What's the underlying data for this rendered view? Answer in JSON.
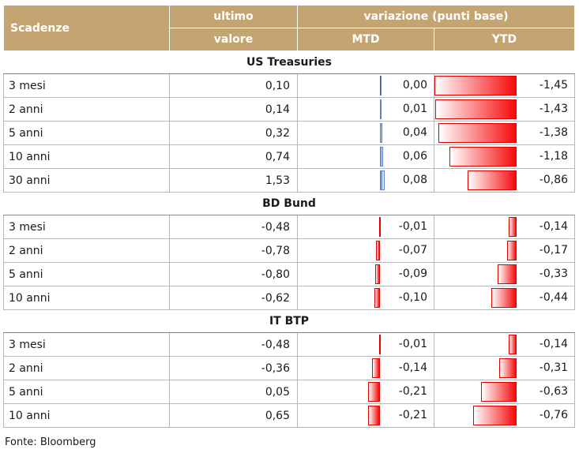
{
  "header": {
    "col_maturity": "Scadenze",
    "col_last_line1": "ultimo",
    "col_last_line2": "valore",
    "col_change": "variazione (punti base)",
    "col_mtd": "MTD",
    "col_ytd": "YTD"
  },
  "scale": {
    "max_abs": 1.45
  },
  "colors": {
    "header_bg": "#c4a571",
    "negative_bar": "#f6090b",
    "positive_bar": "#4b79c4"
  },
  "groups": [
    {
      "title": "US Treasuries",
      "rows": [
        {
          "name": "3 mesi",
          "last": "0,10",
          "mtd": "0,00",
          "mtd_num": 0.0,
          "ytd": "-1,45",
          "ytd_num": -1.45
        },
        {
          "name": "2 anni",
          "last": "0,14",
          "mtd": "0,01",
          "mtd_num": 0.01,
          "ytd": "-1,43",
          "ytd_num": -1.43
        },
        {
          "name": "5 anni",
          "last": "0,32",
          "mtd": "0,04",
          "mtd_num": 0.04,
          "ytd": "-1,38",
          "ytd_num": -1.38
        },
        {
          "name": "10 anni",
          "last": "0,74",
          "mtd": "0,06",
          "mtd_num": 0.06,
          "ytd": "-1,18",
          "ytd_num": -1.18
        },
        {
          "name": "30 anni",
          "last": "1,53",
          "mtd": "0,08",
          "mtd_num": 0.08,
          "ytd": "-0,86",
          "ytd_num": -0.86
        }
      ]
    },
    {
      "title": "BD Bund",
      "rows": [
        {
          "name": "3 mesi",
          "last": "-0,48",
          "mtd": "-0,01",
          "mtd_num": -0.01,
          "ytd": "-0,14",
          "ytd_num": -0.14
        },
        {
          "name": "2 anni",
          "last": "-0,78",
          "mtd": "-0,07",
          "mtd_num": -0.07,
          "ytd": "-0,17",
          "ytd_num": -0.17
        },
        {
          "name": "5 anni",
          "last": "-0,80",
          "mtd": "-0,09",
          "mtd_num": -0.09,
          "ytd": "-0,33",
          "ytd_num": -0.33
        },
        {
          "name": "10 anni",
          "last": "-0,62",
          "mtd": "-0,10",
          "mtd_num": -0.1,
          "ytd": "-0,44",
          "ytd_num": -0.44
        }
      ]
    },
    {
      "title": "IT BTP",
      "rows": [
        {
          "name": "3 mesi",
          "last": "-0,48",
          "mtd": "-0,01",
          "mtd_num": -0.01,
          "ytd": "-0,14",
          "ytd_num": -0.14
        },
        {
          "name": "2 anni",
          "last": "-0,36",
          "mtd": "-0,14",
          "mtd_num": -0.14,
          "ytd": "-0,31",
          "ytd_num": -0.31
        },
        {
          "name": "5 anni",
          "last": "0,05",
          "mtd": "-0,21",
          "mtd_num": -0.21,
          "ytd": "-0,63",
          "ytd_num": -0.63
        },
        {
          "name": "10 anni",
          "last": "0,65",
          "mtd": "-0,21",
          "mtd_num": -0.21,
          "ytd": "-0,76",
          "ytd_num": -0.76
        }
      ]
    }
  ],
  "source": "Fonte: Bloomberg"
}
